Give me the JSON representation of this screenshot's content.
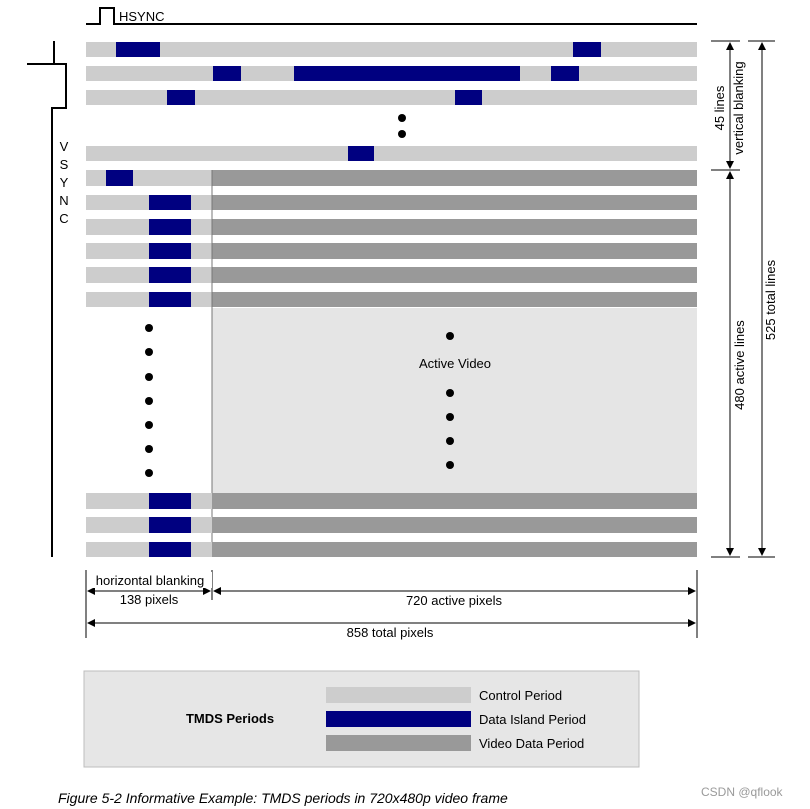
{
  "hsync_label": "HSYNC",
  "vsync_label": "VSYNC",
  "active_video_label": "Active Video",
  "labels": {
    "vblank_lines": "45 lines",
    "vblank_text": "vertical blanking",
    "active_lines": "480 active lines",
    "total_lines": "525 total lines",
    "hblank_text": "horizontal blanking",
    "hblank_pixels": "138 pixels",
    "active_pixels": "720 active pixels",
    "total_pixels": "858 total pixels"
  },
  "legend": {
    "title": "TMDS Periods",
    "items": [
      {
        "key": "control",
        "label": "Control Period",
        "color": "#cdcdcd"
      },
      {
        "key": "data_island",
        "label": "Data Island Period",
        "color": "#000080"
      },
      {
        "key": "video",
        "label": "Video Data Period",
        "color": "#999999"
      }
    ]
  },
  "caption": "Figure 5-2 Informative Example: TMDS periods in 720x480p video frame",
  "watermark": "CSDN @qflook"
}
